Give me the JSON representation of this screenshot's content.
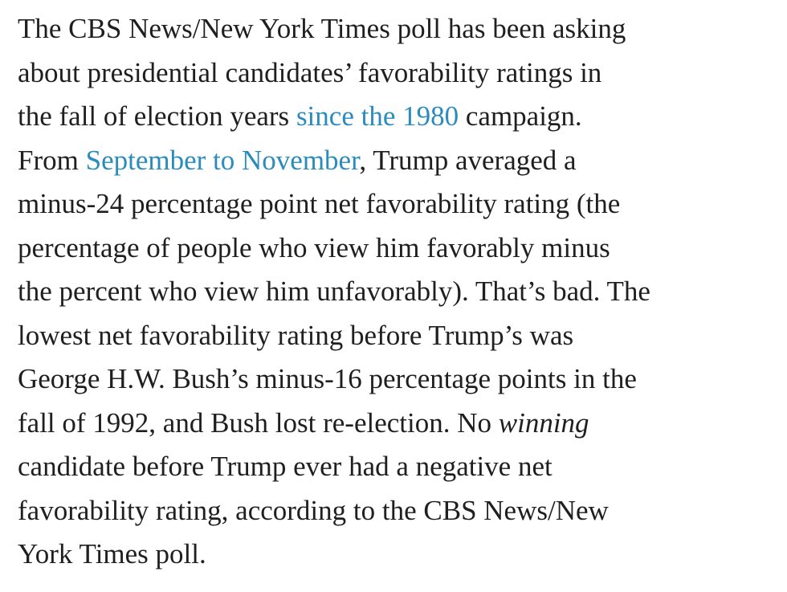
{
  "paragraph": {
    "l1": "The CBS News/New York Times poll has been asking",
    "l2": "about presidential candidates’ favorability ratings in",
    "l3a": "the fall of election years ",
    "l3_link": "since the 1980",
    "l3b": " campaign.",
    "l4a": "From ",
    "l4_link": "September to November",
    "l4b": ", Trump averaged a",
    "l5": "minus-24 percentage point net favorability rating (the",
    "l6": "percentage of people who view him favorably minus",
    "l7": "the percent who view him unfavorably). That’s bad. The",
    "l8": "lowest net favorability rating before Trump’s was",
    "l9": "George H.W. Bush’s minus-16 percentage points in the",
    "l10a": "fall of 1992, and Bush lost re-election. No ",
    "l10_em": "winning",
    "l11": "candidate before Trump ever had a negative net",
    "l12": "favorability rating, according to the CBS News/New",
    "l13": "York Times poll."
  },
  "colors": {
    "link": "#2a8bbd",
    "text": "#1f1f1f"
  }
}
